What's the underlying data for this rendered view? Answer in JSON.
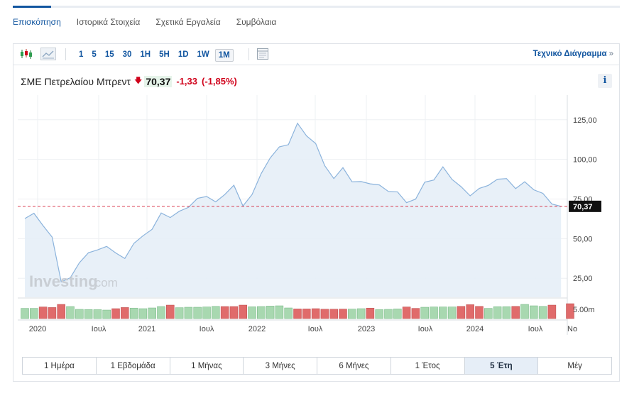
{
  "tabs": [
    "Επισκόπηση",
    "Ιστορικά Στοιχεία",
    "Σχετικά Εργαλεία",
    "Συμβόλαια"
  ],
  "toolbar": {
    "periods": [
      "1",
      "5",
      "15",
      "30",
      "1H",
      "5H",
      "1D",
      "1W",
      "1M"
    ],
    "selected_period": "1M",
    "tech_link": "Τεχνικό Διάγραμμα",
    "tech_arrow": "»",
    "icons": [
      "candlestick-icon",
      "line-chart-icon",
      "calendar-icon"
    ]
  },
  "quote": {
    "name": "ΣΜΕ Πετρελαίου Μπρεντ",
    "price": "70,37",
    "change": "-1,33",
    "change_pct": "(-1,85%)",
    "direction": "down"
  },
  "info_label": "i",
  "watermark": {
    "brand": "Investing",
    "suffix": ".com"
  },
  "range_buttons": [
    "1 Ημέρα",
    "1 Εβδομάδα",
    "1 Μήνας",
    "3 Μήνες",
    "6 Μήνες",
    "1 Έτος",
    "5 Έτη",
    "Μέγ"
  ],
  "selected_range": "5 Έτη",
  "colors": {
    "accent": "#1256a0",
    "down": "#d0021b",
    "line": "#8bb3dc",
    "area": "#e6eef7",
    "vol_up": "#a8d8b0",
    "vol_down": "#e06b6b"
  },
  "chart_data": {
    "type": "area",
    "title": "ΣΜΕ Πετρελαίου Μπρεντ",
    "interval": "1M",
    "x_tick_labels": [
      "2020",
      "Ιουλ",
      "2021",
      "Ιουλ",
      "2022",
      "Ιουλ",
      "2023",
      "Ιουλ",
      "2024",
      "Ιουλ",
      "Νο"
    ],
    "y_tick_labels": [
      "125,00",
      "100,00",
      "75,00",
      "50,00",
      "25,00"
    ],
    "y_ticks": [
      125,
      100,
      75,
      50,
      25
    ],
    "ylim": [
      13,
      137
    ],
    "last_value": 70.37,
    "last_value_label": "70,37",
    "volume_label": "5.00m",
    "series": [
      {
        "values": [
          62.7,
          66.0,
          58.2,
          51.0,
          22.7,
          25.3,
          34.8,
          41.1,
          42.9,
          45.1,
          41.0,
          37.5,
          47.0,
          51.8,
          55.9,
          66.2,
          63.3,
          67.3,
          69.7,
          75.4,
          76.6,
          73.2,
          77.8,
          83.7,
          70.6,
          77.8,
          91.0,
          100.9,
          107.9,
          109.3,
          122.8,
          114.8,
          110.0,
          96.0,
          87.9,
          94.8,
          85.9,
          86.0,
          84.6,
          83.9,
          79.8,
          79.5,
          72.7,
          74.9,
          85.6,
          87.0,
          95.3,
          87.4,
          82.8,
          77.0,
          81.7,
          83.6,
          87.5,
          87.9,
          81.6,
          85.9,
          80.8,
          78.6,
          71.8,
          70.37
        ]
      }
    ],
    "volume": {
      "levels": [
        0.72,
        0.72,
        0.82,
        0.78,
        1.0,
        0.85,
        0.65,
        0.64,
        0.63,
        0.6,
        0.7,
        0.78,
        0.74,
        0.7,
        0.75,
        0.85,
        0.95,
        0.77,
        0.8,
        0.8,
        0.82,
        0.86,
        0.85,
        0.85,
        0.95,
        0.83,
        0.85,
        0.88,
        0.9,
        0.75,
        0.68,
        0.68,
        0.7,
        0.66,
        0.66,
        0.67,
        0.67,
        0.7,
        0.74,
        0.63,
        0.65,
        0.68,
        0.82,
        0.72,
        0.8,
        0.82,
        0.82,
        0.82,
        0.86,
        0.98,
        0.86,
        0.72,
        0.84,
        0.84,
        0.86,
        1.0,
        0.9,
        0.86,
        0.95,
        0,
        1.05
      ],
      "directions": [
        "up",
        "up",
        "down",
        "down",
        "down",
        "up",
        "up",
        "up",
        "up",
        "up",
        "down",
        "down",
        "up",
        "up",
        "up",
        "up",
        "down",
        "up",
        "up",
        "up",
        "up",
        "up",
        "down",
        "down",
        "down",
        "up",
        "up",
        "up",
        "up",
        "up",
        "down",
        "down",
        "down",
        "down",
        "down",
        "down",
        "up",
        "up",
        "down",
        "up",
        "up",
        "up",
        "down",
        "down",
        "up",
        "up",
        "up",
        "up",
        "down",
        "down",
        "down",
        "up",
        "up",
        "up",
        "down",
        "up",
        "up",
        "up",
        "down",
        "none",
        "down"
      ]
    }
  }
}
